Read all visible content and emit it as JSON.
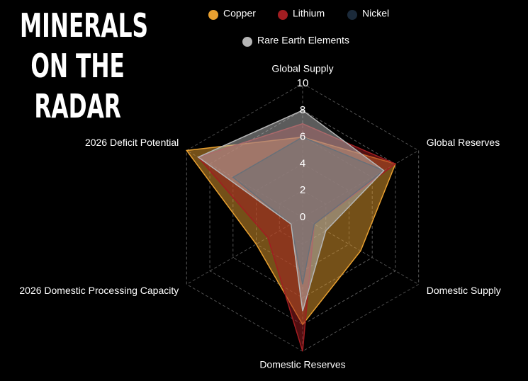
{
  "chart_data": {
    "type": "radar",
    "title": "MINERALS ON THE RADAR",
    "categories": [
      "Global Supply",
      "Global Reserves",
      "Domestic Supply",
      "Domestic Reserves",
      "2026 Domestic Processing Capacity",
      "2026 Deficit Potential"
    ],
    "series": [
      {
        "name": "Copper",
        "color": "#e8a030",
        "values": [
          6,
          8,
          5,
          8,
          4,
          10
        ]
      },
      {
        "name": "Lithium",
        "color": "#a11d21",
        "values": [
          7,
          8,
          1,
          10,
          3,
          9
        ]
      },
      {
        "name": "Nickel",
        "color": "#1b2a3a",
        "values": [
          6,
          7,
          1,
          5,
          1,
          6
        ]
      },
      {
        "name": "Rare Earth Elements",
        "color": "#b5b5b5",
        "values": [
          8,
          7,
          2,
          7,
          1,
          9
        ]
      }
    ],
    "ylim": [
      0,
      10
    ],
    "yticks": [
      0,
      2,
      4,
      6,
      8,
      10
    ],
    "grid": true,
    "legend": "top"
  }
}
